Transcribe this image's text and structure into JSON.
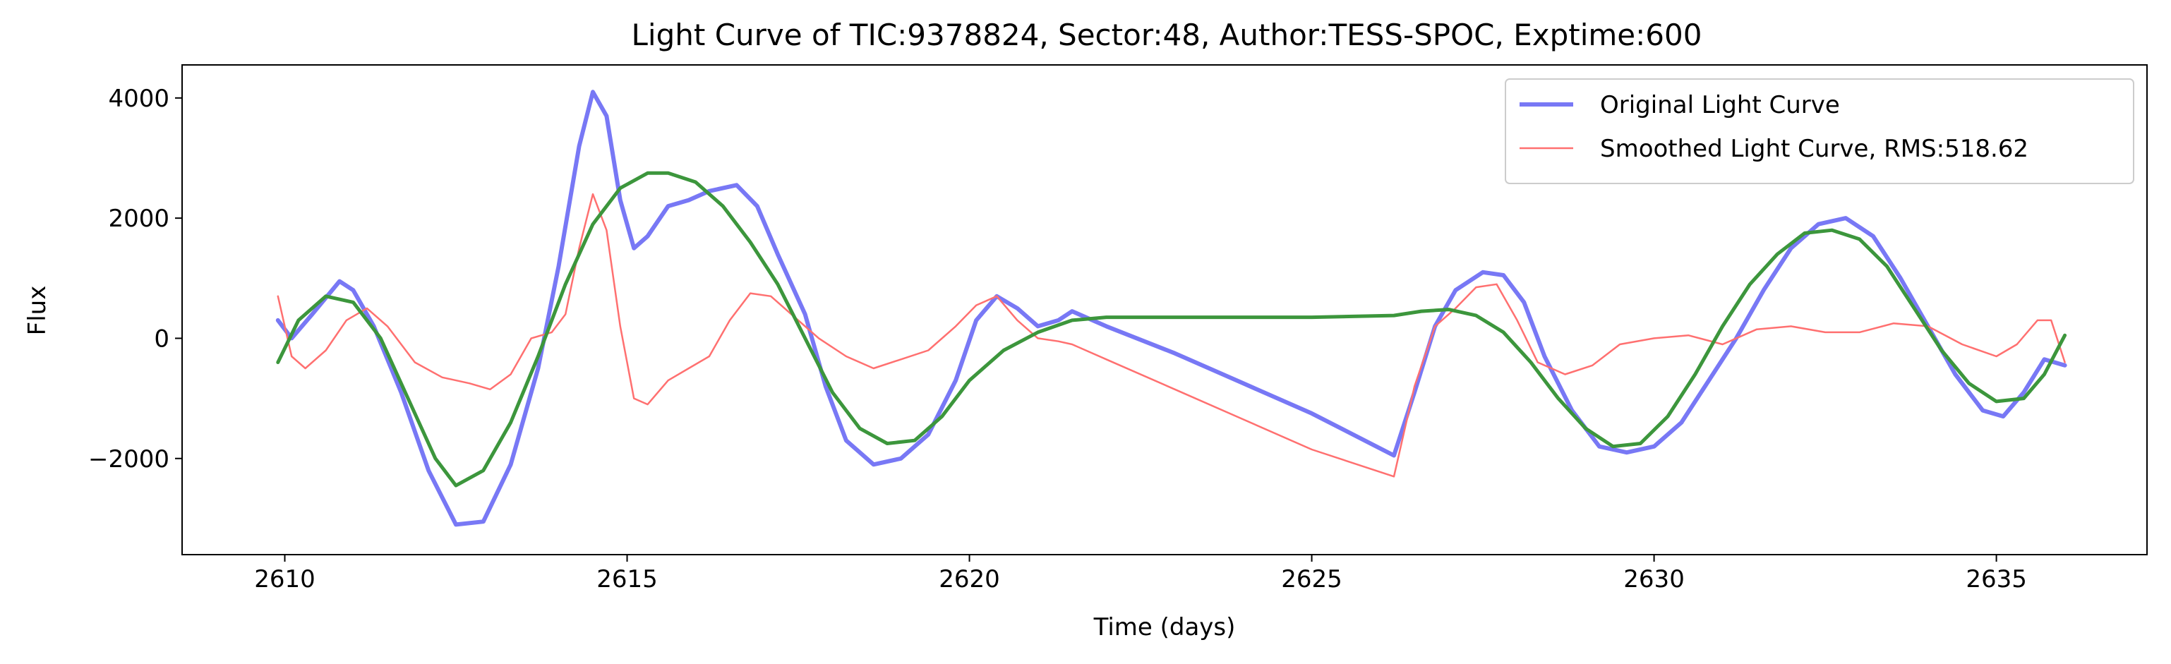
{
  "chart_data": {
    "type": "line",
    "title": "Light Curve of TIC:9378824, Sector:48, Author:TESS-SPOC, Exptime:600",
    "xlabel": "Time (days)",
    "ylabel": "Flux",
    "xlim": [
      2608.5,
      2637.2
    ],
    "ylim": [
      -3600,
      4550
    ],
    "xticks": [
      2610,
      2615,
      2620,
      2625,
      2630,
      2635
    ],
    "yticks": [
      -2000,
      0,
      2000,
      4000
    ],
    "ytick_labels": [
      "−2000",
      "0",
      "2000",
      "4000"
    ],
    "grid": false,
    "legend_position": "top-right",
    "series": [
      {
        "name": "Original Light Curve",
        "color": "#7878f5",
        "style": "thick",
        "x": [
          2609.9,
          2610.1,
          2610.4,
          2610.8,
          2611.0,
          2611.3,
          2611.7,
          2612.1,
          2612.5,
          2612.9,
          2613.3,
          2613.7,
          2614.0,
          2614.3,
          2614.5,
          2614.7,
          2614.9,
          2615.1,
          2615.3,
          2615.6,
          2615.9,
          2616.2,
          2616.6,
          2616.9,
          2617.2,
          2617.6,
          2617.9,
          2618.2,
          2618.6,
          2619.0,
          2619.4,
          2619.8,
          2620.1,
          2620.4,
          2620.7,
          2621.0,
          2621.3,
          2621.5,
          2622.0,
          2623.0,
          2624.0,
          2625.0,
          2626.2,
          2626.5,
          2626.8,
          2627.1,
          2627.5,
          2627.8,
          2628.1,
          2628.4,
          2628.8,
          2629.2,
          2629.6,
          2630.0,
          2630.4,
          2630.8,
          2631.2,
          2631.6,
          2632.0,
          2632.4,
          2632.8,
          2633.2,
          2633.6,
          2634.0,
          2634.4,
          2634.8,
          2635.1,
          2635.4,
          2635.7,
          2636.0
        ],
        "y": [
          300,
          0,
          400,
          950,
          800,
          200,
          -900,
          -2200,
          -3100,
          -3050,
          -2100,
          -500,
          1200,
          3200,
          4100,
          3700,
          2300,
          1500,
          1700,
          2200,
          2300,
          2450,
          2550,
          2200,
          1400,
          400,
          -800,
          -1700,
          -2100,
          -2000,
          -1600,
          -700,
          300,
          700,
          500,
          200,
          300,
          450,
          200,
          -250,
          -750,
          -1250,
          -1950,
          -900,
          200,
          800,
          1100,
          1050,
          600,
          -300,
          -1200,
          -1800,
          -1900,
          -1800,
          -1400,
          -700,
          0,
          800,
          1500,
          1900,
          2000,
          1700,
          1000,
          200,
          -600,
          -1200,
          -1300,
          -900,
          -350,
          -450
        ]
      },
      {
        "name": "Smoothed Light Curve, RMS:518.62",
        "color": "#ff7070",
        "style": "thin",
        "x": [
          2609.9,
          2610.1,
          2610.3,
          2610.6,
          2610.9,
          2611.2,
          2611.5,
          2611.9,
          2612.3,
          2612.7,
          2613.0,
          2613.3,
          2613.6,
          2613.9,
          2614.1,
          2614.3,
          2614.5,
          2614.7,
          2614.9,
          2615.1,
          2615.3,
          2615.6,
          2615.9,
          2616.2,
          2616.5,
          2616.8,
          2617.1,
          2617.4,
          2617.8,
          2618.2,
          2618.6,
          2619.0,
          2619.4,
          2619.8,
          2620.1,
          2620.4,
          2620.7,
          2621.0,
          2621.3,
          2621.5,
          2622.0,
          2623.0,
          2624.0,
          2625.0,
          2626.2,
          2626.5,
          2626.8,
          2627.1,
          2627.4,
          2627.7,
          2628.0,
          2628.3,
          2628.7,
          2629.1,
          2629.5,
          2630.0,
          2630.5,
          2631.0,
          2631.5,
          2632.0,
          2632.5,
          2633.0,
          2633.5,
          2634.0,
          2634.5,
          2635.0,
          2635.3,
          2635.6,
          2635.8,
          2636.0
        ],
        "y": [
          700,
          -300,
          -500,
          -200,
          300,
          500,
          200,
          -400,
          -650,
          -750,
          -850,
          -600,
          0,
          100,
          400,
          1500,
          2400,
          1800,
          200,
          -1000,
          -1100,
          -700,
          -500,
          -300,
          300,
          750,
          700,
          400,
          0,
          -300,
          -500,
          -350,
          -200,
          200,
          550,
          700,
          300,
          0,
          -50,
          -100,
          -350,
          -850,
          -1350,
          -1850,
          -2300,
          -800,
          200,
          500,
          850,
          900,
          300,
          -400,
          -600,
          -450,
          -100,
          0,
          50,
          -100,
          150,
          200,
          100,
          100,
          250,
          200,
          -100,
          -300,
          -100,
          300,
          300,
          -400
        ]
      },
      {
        "name": "",
        "color": "#3c963c",
        "style": "medium",
        "x": [
          2609.9,
          2610.2,
          2610.6,
          2611.0,
          2611.4,
          2611.8,
          2612.2,
          2612.5,
          2612.9,
          2613.3,
          2613.7,
          2614.1,
          2614.5,
          2614.9,
          2615.3,
          2615.6,
          2616.0,
          2616.4,
          2616.8,
          2617.2,
          2617.6,
          2618.0,
          2618.4,
          2618.8,
          2619.2,
          2619.6,
          2620.0,
          2620.5,
          2621.0,
          2621.5,
          2622.0,
          2623.0,
          2624.0,
          2625.0,
          2626.2,
          2626.6,
          2627.0,
          2627.4,
          2627.8,
          2628.2,
          2628.6,
          2629.0,
          2629.4,
          2629.8,
          2630.2,
          2630.6,
          2631.0,
          2631.4,
          2631.8,
          2632.2,
          2632.6,
          2633.0,
          2633.4,
          2633.8,
          2634.2,
          2634.6,
          2635.0,
          2635.4,
          2635.7,
          2636.0
        ],
        "y": [
          -400,
          300,
          700,
          600,
          0,
          -1000,
          -2000,
          -2450,
          -2200,
          -1400,
          -300,
          900,
          1900,
          2500,
          2750,
          2750,
          2600,
          2200,
          1600,
          900,
          0,
          -900,
          -1500,
          -1750,
          -1700,
          -1300,
          -700,
          -200,
          100,
          300,
          350,
          350,
          350,
          350,
          380,
          450,
          480,
          380,
          100,
          -400,
          -1000,
          -1500,
          -1800,
          -1750,
          -1300,
          -600,
          200,
          900,
          1400,
          1750,
          1800,
          1650,
          1200,
          500,
          -200,
          -750,
          -1050,
          -1000,
          -600,
          50
        ]
      }
    ]
  }
}
